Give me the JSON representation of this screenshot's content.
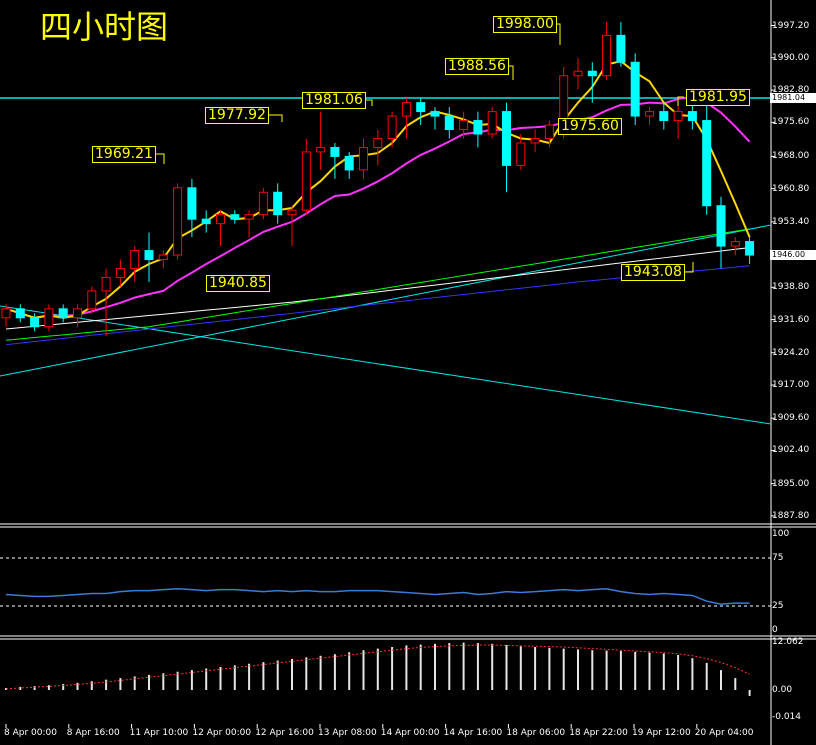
{
  "title": "四小时图",
  "price_axis": {
    "labels": [
      "1997.20",
      "1990.00",
      "1982.80",
      "1975.60",
      "1968.00",
      "1960.80",
      "1953.40",
      "1946.00",
      "1938.80",
      "1931.60",
      "1924.20",
      "1917.00",
      "1909.60",
      "1902.40",
      "1895.00",
      "1887.80"
    ],
    "current_price": "1946.00",
    "hline_price": "1981.04"
  },
  "time_axis": {
    "labels": [
      "8 Apr 00:00",
      "8 Apr 16:00",
      "11 Apr 10:00",
      "12 Apr 00:00",
      "12 Apr 16:00",
      "13 Apr 08:00",
      "14 Apr 00:00",
      "14 Apr 16:00",
      "18 Apr 06:00",
      "18 Apr 22:00",
      "19 Apr 12:00",
      "20 Apr 04:00"
    ]
  },
  "annotations": [
    "1998.00",
    "1988.56",
    "1977.92",
    "1981.06",
    "1981.95",
    "1969.21",
    "1975.60",
    "1940.85",
    "1943.08"
  ],
  "rsi_axis": [
    "100",
    "75",
    "25",
    "0"
  ],
  "macd_axis": [
    "12.062",
    "0.00",
    "-0.014"
  ],
  "chart_data": {
    "type": "candlestick",
    "title": "四小时图",
    "ylim": [
      1886,
      2002
    ],
    "candles": [
      [
        1932,
        1935,
        1930,
        1934
      ],
      [
        1934,
        1935,
        1931,
        1932
      ],
      [
        1932,
        1933,
        1929,
        1930
      ],
      [
        1930,
        1935,
        1929,
        1934
      ],
      [
        1934,
        1935,
        1931,
        1932
      ],
      [
        1932,
        1935,
        1930,
        1934
      ],
      [
        1934,
        1939,
        1933,
        1938
      ],
      [
        1938,
        1943,
        1928,
        1941
      ],
      [
        1941,
        1945,
        1939,
        1943
      ],
      [
        1943,
        1948,
        1940,
        1947
      ],
      [
        1947,
        1951,
        1940,
        1945
      ],
      [
        1945,
        1947,
        1943,
        1946
      ],
      [
        1946,
        1962,
        1945,
        1961
      ],
      [
        1961,
        1963,
        1950,
        1954
      ],
      [
        1954,
        1956,
        1951,
        1953
      ],
      [
        1953,
        1956,
        1948,
        1955
      ],
      [
        1955,
        1956,
        1953,
        1954
      ],
      [
        1954,
        1956,
        1950,
        1955
      ],
      [
        1955,
        1961,
        1954,
        1960
      ],
      [
        1960,
        1962,
        1953,
        1955
      ],
      [
        1955,
        1957,
        1948,
        1956
      ],
      [
        1956,
        1972,
        1955,
        1969
      ],
      [
        1969,
        1978,
        1965,
        1970
      ],
      [
        1970,
        1971,
        1963,
        1968
      ],
      [
        1968,
        1969,
        1963,
        1965
      ],
      [
        1965,
        1972,
        1963,
        1970
      ],
      [
        1970,
        1974,
        1966,
        1972
      ],
      [
        1972,
        1978,
        1970,
        1977
      ],
      [
        1977,
        1981,
        1972,
        1980
      ],
      [
        1980,
        1981,
        1975,
        1978
      ],
      [
        1978,
        1979,
        1974,
        1977
      ],
      [
        1977,
        1979,
        1972,
        1974
      ],
      [
        1974,
        1978,
        1972,
        1976
      ],
      [
        1976,
        1978,
        1970,
        1973
      ],
      [
        1973,
        1979,
        1972,
        1978
      ],
      [
        1978,
        1980,
        1960,
        1966
      ],
      [
        1966,
        1973,
        1965,
        1971
      ],
      [
        1971,
        1974,
        1969,
        1972
      ],
      [
        1972,
        1976,
        1970,
        1975
      ],
      [
        1975,
        1988,
        1972,
        1986
      ],
      [
        1986,
        1990,
        1983,
        1987
      ],
      [
        1987,
        1989,
        1980,
        1986
      ],
      [
        1986,
        1998,
        1985,
        1995
      ],
      [
        1995,
        1998,
        1988,
        1989
      ],
      [
        1989,
        1991,
        1975,
        1977
      ],
      [
        1977,
        1979,
        1975,
        1978
      ],
      [
        1978,
        1980,
        1974,
        1976
      ],
      [
        1976,
        1981,
        1972,
        1978
      ],
      [
        1978,
        1981,
        1974,
        1976
      ],
      [
        1976,
        1982,
        1955,
        1957
      ],
      [
        1957,
        1959,
        1943,
        1948
      ],
      [
        1948,
        1950,
        1946,
        1949
      ],
      [
        1949,
        1950,
        1944,
        1946
      ]
    ],
    "rsi": [
      37,
      36,
      35,
      35,
      36,
      37,
      38,
      38,
      40,
      41,
      41,
      42,
      43,
      42,
      41,
      42,
      42,
      41,
      40,
      41,
      40,
      41,
      40,
      40,
      41,
      41,
      41,
      40,
      39,
      38,
      37,
      38,
      39,
      37,
      38,
      40,
      39,
      40,
      41,
      42,
      41,
      42,
      43,
      40,
      38,
      37,
      38,
      37,
      36,
      30,
      27,
      28,
      28
    ],
    "rsi_levels": [
      75,
      25
    ],
    "macd_hist": [
      0.5,
      0.8,
      1.0,
      1.2,
      1.5,
      1.8,
      2.2,
      2.6,
      3.0,
      3.4,
      3.8,
      4.2,
      4.6,
      5.0,
      5.4,
      5.8,
      6.2,
      6.6,
      7.0,
      7.4,
      7.8,
      8.2,
      8.6,
      9.0,
      9.5,
      10.0,
      10.4,
      10.8,
      11.2,
      11.4,
      11.6,
      11.8,
      11.9,
      11.8,
      11.6,
      11.3,
      11.0,
      10.8,
      10.6,
      10.4,
      10.2,
      10.0,
      9.9,
      9.8,
      9.6,
      9.4,
      9.2,
      8.8,
      8.0,
      6.8,
      5.0,
      3.0,
      -1.5
    ],
    "macd_signal": [
      0.3,
      0.5,
      0.7,
      0.9,
      1.1,
      1.4,
      1.7,
      2.0,
      2.4,
      2.8,
      3.2,
      3.6,
      4.0,
      4.4,
      4.8,
      5.2,
      5.6,
      6.0,
      6.4,
      6.8,
      7.2,
      7.6,
      8.0,
      8.4,
      8.8,
      9.2,
      9.6,
      10.0,
      10.4,
      10.7,
      10.9,
      11.1,
      11.2,
      11.3,
      11.3,
      11.2,
      11.1,
      11.0,
      10.9,
      10.8,
      10.6,
      10.4,
      10.2,
      10.0,
      9.8,
      9.6,
      9.4,
      9.1,
      8.6,
      7.9,
      6.9,
      5.6,
      4.0
    ]
  },
  "colors": {
    "up_candle": "#ff0000",
    "down_candle": "#00ffff",
    "ma_fast": "#ffd700",
    "ma_mid": "#ff33ff",
    "ma_slow_green": "#00ff00",
    "ma_slow_white": "#ffffff",
    "ma_slow_blue": "#3333ff",
    "trendline": "#00e5e5",
    "rsi_line": "#3a7bd5",
    "macd_signal": "#ff3333",
    "annotation": "#ffff00"
  }
}
